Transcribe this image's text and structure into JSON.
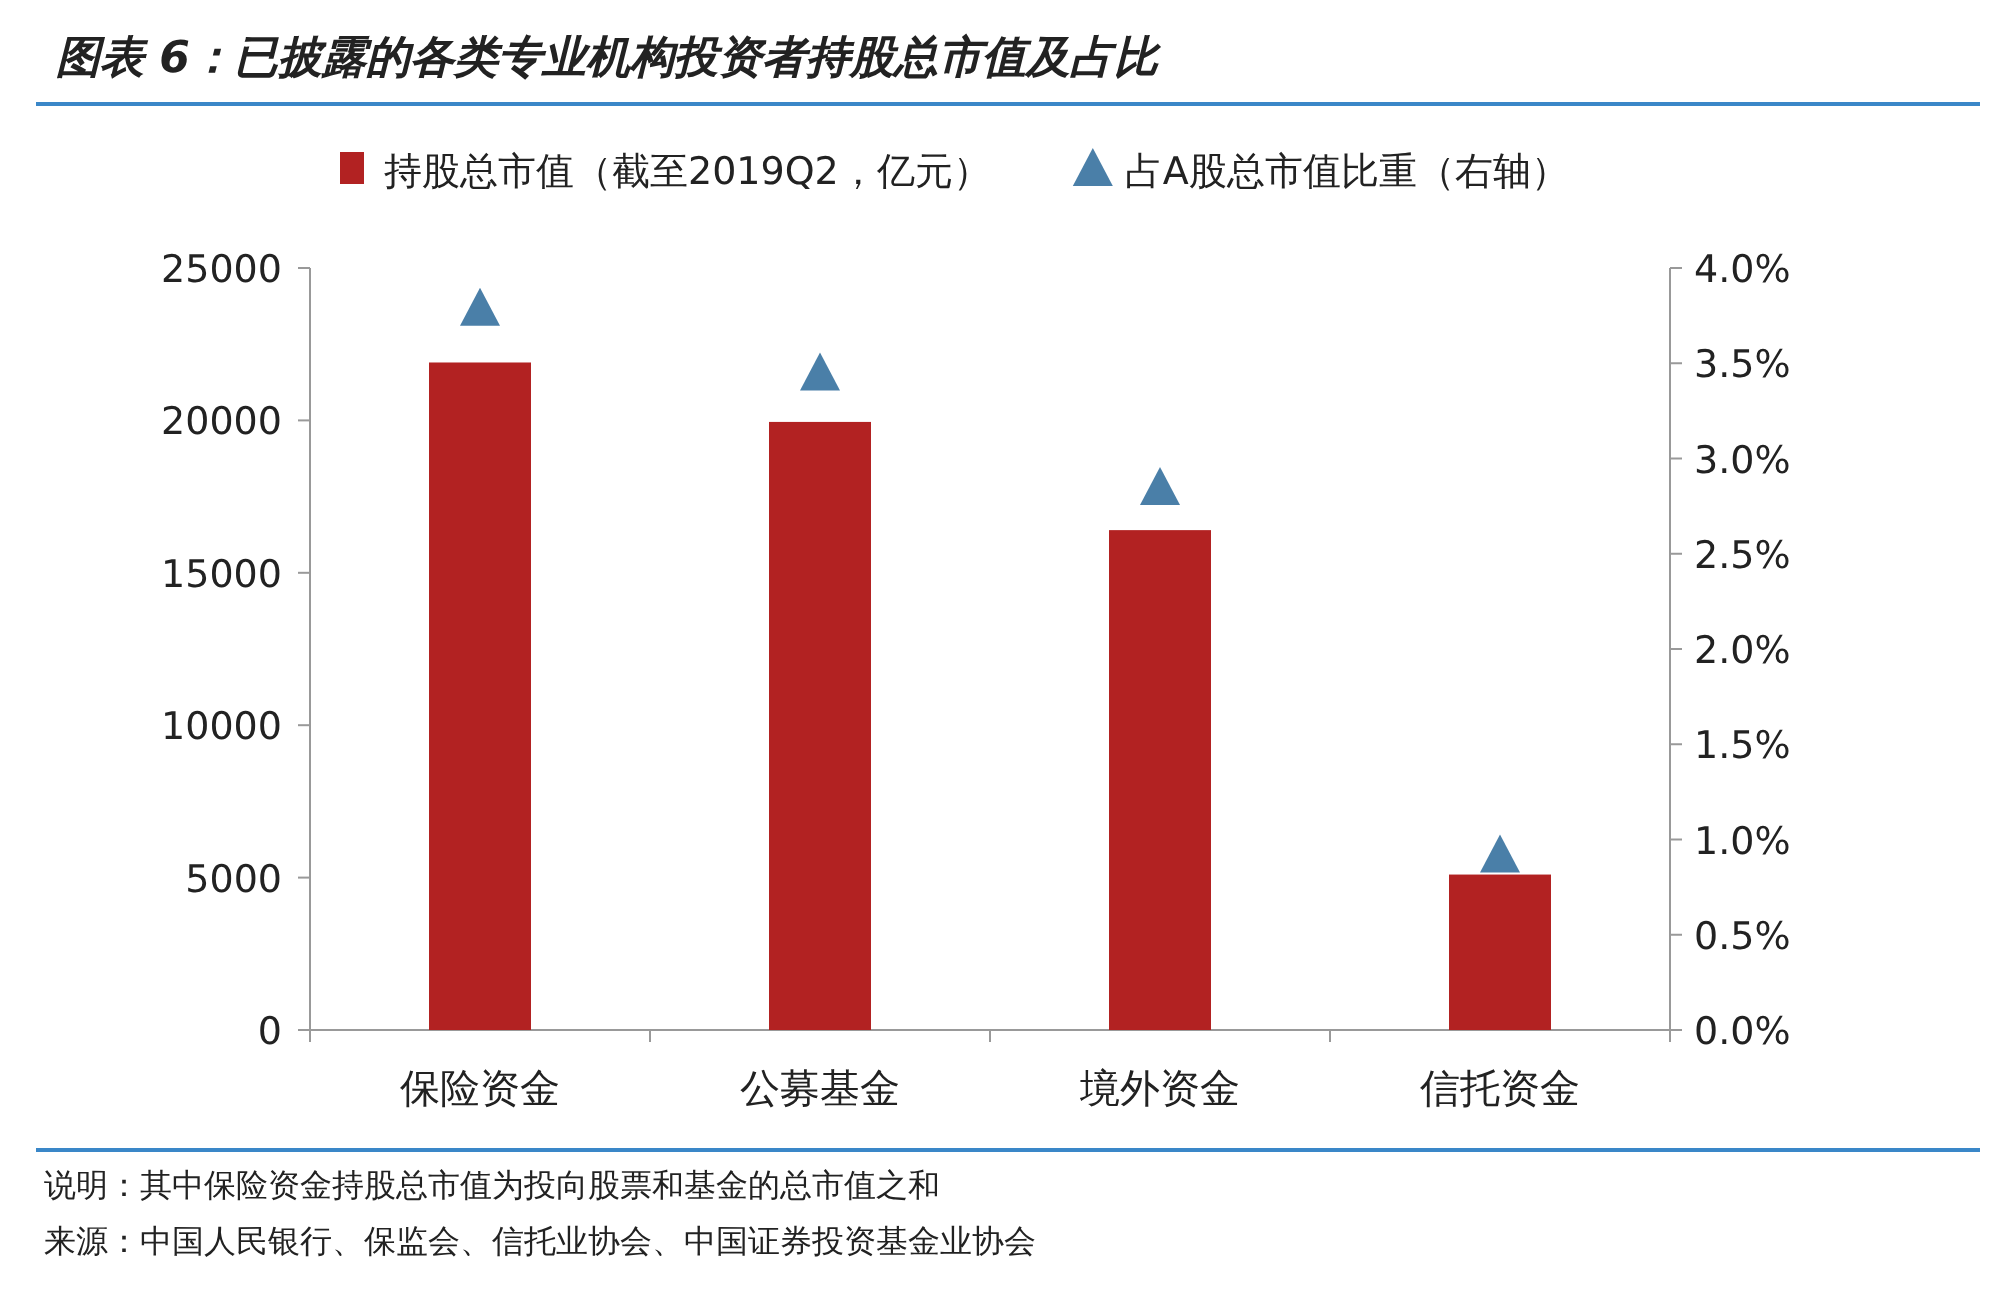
{
  "chart_data": {
    "type": "bar",
    "title": "图表 6：已披露的各类专业机构投资者持股总市值及占比",
    "categories": [
      "保险资金",
      "公募基金",
      "境外资金",
      "信托资金"
    ],
    "series": [
      {
        "name": "持股总市值（截至2019Q2，亿元）",
        "color": "#b22222",
        "values": [
          21900,
          19950,
          16400,
          5100
        ]
      },
      {
        "name": "占A股总市值比重（右轴）",
        "type": "scatter",
        "axis": "y2",
        "marker": "triangle",
        "color": "#4a7fa8",
        "values": [
          3.77,
          3.43,
          2.83,
          0.9
        ]
      }
    ],
    "ylim": [
      0,
      25000
    ],
    "yticks": [
      0,
      5000,
      10000,
      15000,
      20000,
      25000
    ],
    "y2lim": [
      0,
      4
    ],
    "y2ticks": [
      {
        "value": 0,
        "label": "0.0%"
      },
      {
        "value": 0.5,
        "label": "0.5%"
      },
      {
        "value": 1,
        "label": "1.0%"
      },
      {
        "value": 1.5,
        "label": "1.5%"
      },
      {
        "value": 2,
        "label": "2.0%"
      },
      {
        "value": 2.5,
        "label": "2.5%"
      },
      {
        "value": 3,
        "label": "3.0%"
      },
      {
        "value": 3.5,
        "label": "3.5%"
      },
      {
        "value": 4,
        "label": "4.0%"
      }
    ],
    "legend": "top",
    "grid": false,
    "annotations": [
      "说明：其中保险资金持股总市值为投向股票和基金的总市值之和",
      "来源：中国人民银行、保监会、信托业协会、中国证券投资基金业协会"
    ]
  }
}
